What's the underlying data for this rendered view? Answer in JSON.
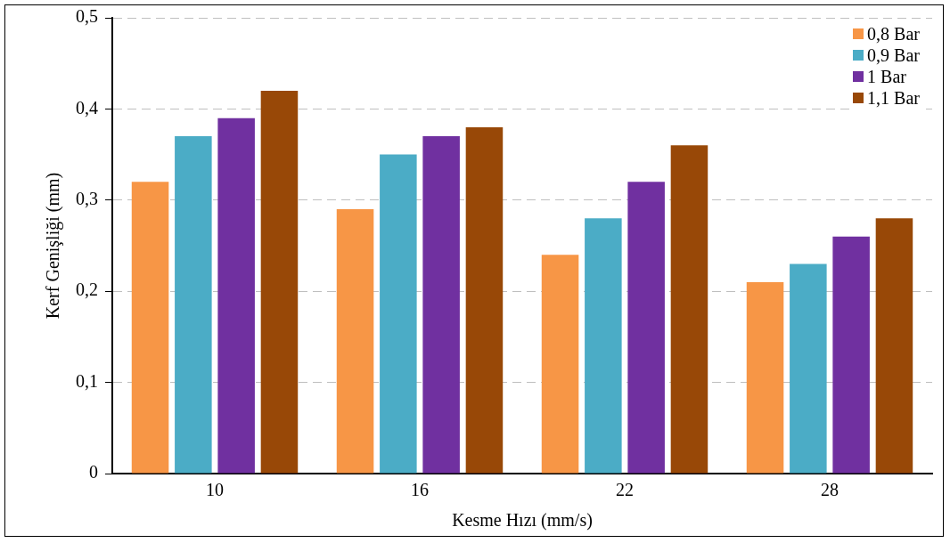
{
  "chart_data": {
    "type": "bar",
    "xlabel": "Kesme Hızı (mm/s)",
    "ylabel": "Kerf Genişliği (mm)",
    "categories": [
      "10",
      "16",
      "22",
      "28"
    ],
    "series": [
      {
        "name": "0,8 Bar",
        "color": "#f79646",
        "values": [
          0.32,
          0.29,
          0.24,
          0.21
        ]
      },
      {
        "name": "0,9 Bar",
        "color": "#4bacc6",
        "values": [
          0.37,
          0.35,
          0.28,
          0.23
        ]
      },
      {
        "name": "1 Bar",
        "color": "#7030a0",
        "values": [
          0.39,
          0.37,
          0.32,
          0.26
        ]
      },
      {
        "name": "1,1 Bar",
        "color": "#984807",
        "values": [
          0.42,
          0.38,
          0.36,
          0.28
        ]
      }
    ],
    "ylim": [
      0,
      0.5
    ],
    "yticks": [
      0,
      {
        "value": 0.1,
        "label": "0,1"
      },
      {
        "value": 0.2,
        "label": "0,2"
      },
      {
        "value": 0.3,
        "label": "0,3"
      },
      {
        "value": 0.4,
        "label": "0,4"
      },
      {
        "value": 0.5,
        "label": "0,5"
      }
    ],
    "grid": "y",
    "legend": "top right"
  }
}
